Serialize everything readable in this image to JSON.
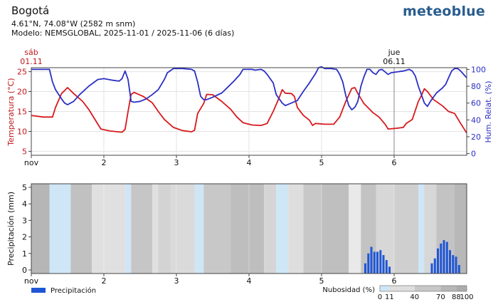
{
  "header": {
    "location": "Bogotá",
    "coordinates": "4.61°N, 74.08°W (2582 m snm)",
    "model": "Modelo: NEMSGLOBAL, 2025-11-01 / 2025-11-06 (6 días)",
    "logo": "meteoblue"
  },
  "colors": {
    "temperature": "#d7191c",
    "humidity": "#2b2fc4",
    "precipitation": "#1f56d6",
    "sky_blue": "#cfe6f6"
  },
  "chart_data": [
    {
      "type": "line",
      "ylabel_left": "Temperatura (°C)",
      "ylabel_right": "Hum. Relat. (%)",
      "ylim_left": [
        4,
        26
      ],
      "ylim_right": [
        -2,
        102
      ],
      "yticks_left": [
        5,
        10,
        15,
        20,
        25
      ],
      "yticks_right": [
        0,
        20,
        40,
        60,
        80,
        100
      ],
      "xlim_hours": [
        0,
        144
      ],
      "xticks": [
        {
          "h": 0,
          "label": "nov"
        },
        {
          "h": 24,
          "label": "2"
        },
        {
          "h": 48,
          "label": "3"
        },
        {
          "h": 72,
          "label": "4"
        },
        {
          "h": 96,
          "label": "5"
        },
        {
          "h": 120,
          "label": "6"
        }
      ],
      "day_markers": [
        {
          "h": 0,
          "day": "sáb",
          "date": "01.11"
        },
        {
          "h": 120,
          "day": "jue",
          "date": "06.11"
        }
      ],
      "grid": true,
      "series": [
        {
          "name": "Temperatura (°C)",
          "axis": "left",
          "points": [
            [
              0,
              14
            ],
            [
              4,
              13.6
            ],
            [
              7,
              13.6
            ],
            [
              8,
              16
            ],
            [
              10,
              19.5
            ],
            [
              12,
              21
            ],
            [
              14,
              19.5
            ],
            [
              17,
              17.5
            ],
            [
              19,
              15.5
            ],
            [
              23,
              10.6
            ],
            [
              26,
              10.1
            ],
            [
              30,
              9.8
            ],
            [
              31,
              10.5
            ],
            [
              32,
              15
            ],
            [
              33,
              19.3
            ],
            [
              34,
              19.8
            ],
            [
              37,
              18.8
            ],
            [
              40,
              17.2
            ],
            [
              42,
              15
            ],
            [
              44,
              13
            ],
            [
              47,
              11
            ],
            [
              50,
              10.2
            ],
            [
              53,
              9.9
            ],
            [
              54,
              10.3
            ],
            [
              55,
              14.5
            ],
            [
              57,
              17
            ],
            [
              58,
              19.3
            ],
            [
              60,
              19.2
            ],
            [
              63,
              17.5
            ],
            [
              66,
              15.5
            ],
            [
              68,
              13.6
            ],
            [
              70,
              12.2
            ],
            [
              73,
              11.6
            ],
            [
              76,
              11.5
            ],
            [
              78,
              12
            ],
            [
              80,
              15
            ],
            [
              82,
              18.5
            ],
            [
              83,
              20.5
            ],
            [
              84,
              19.6
            ],
            [
              86,
              19.5
            ],
            [
              87,
              18.8
            ],
            [
              88,
              16
            ],
            [
              90,
              14
            ],
            [
              92,
              12.8
            ],
            [
              93,
              11.5
            ],
            [
              94,
              12
            ],
            [
              97,
              11.8
            ],
            [
              100,
              11.8
            ],
            [
              102,
              13.6
            ],
            [
              104,
              17.5
            ],
            [
              106,
              20.8
            ],
            [
              107,
              21
            ],
            [
              108,
              19.5
            ],
            [
              110,
              17
            ],
            [
              113,
              14.7
            ],
            [
              115,
              13.6
            ],
            [
              117,
              11.8
            ],
            [
              118,
              10.6
            ],
            [
              121,
              10.8
            ],
            [
              123,
              11
            ],
            [
              124,
              12
            ],
            [
              126,
              13
            ],
            [
              128,
              17.5
            ],
            [
              129,
              19
            ],
            [
              130,
              20.7
            ],
            [
              131,
              20
            ],
            [
              133,
              18
            ],
            [
              136,
              16.4
            ],
            [
              138,
              15
            ],
            [
              140,
              14.5
            ],
            [
              142,
              12
            ],
            [
              144,
              9.6
            ]
          ]
        },
        {
          "name": "Hum. Relat. (%)",
          "axis": "right",
          "points": [
            [
              0,
              100
            ],
            [
              6,
              100
            ],
            [
              7,
              85
            ],
            [
              8,
              76
            ],
            [
              10,
              65
            ],
            [
              11,
              60
            ],
            [
              12,
              58
            ],
            [
              14,
              62
            ],
            [
              16,
              70
            ],
            [
              19,
              80
            ],
            [
              22,
              88
            ],
            [
              24,
              89
            ],
            [
              27,
              87
            ],
            [
              29,
              86
            ],
            [
              30,
              89
            ],
            [
              31,
              98
            ],
            [
              32,
              88
            ],
            [
              33,
              62
            ],
            [
              34,
              61
            ],
            [
              36,
              62
            ],
            [
              38,
              65
            ],
            [
              40,
              70
            ],
            [
              42,
              76
            ],
            [
              44,
              88
            ],
            [
              45,
              96
            ],
            [
              47,
              101
            ],
            [
              50,
              101
            ],
            [
              53,
              100
            ],
            [
              54,
              98
            ],
            [
              55,
              85
            ],
            [
              56,
              68
            ],
            [
              57,
              64
            ],
            [
              58,
              64
            ],
            [
              60,
              67
            ],
            [
              63,
              72
            ],
            [
              65,
              79
            ],
            [
              67,
              86
            ],
            [
              69,
              94
            ],
            [
              70,
              100
            ],
            [
              73,
              100
            ],
            [
              74,
              99
            ],
            [
              76,
              100
            ],
            [
              77,
              98
            ],
            [
              78,
              94
            ],
            [
              80,
              84
            ],
            [
              81,
              70
            ],
            [
              82,
              65
            ],
            [
              83,
              60
            ],
            [
              84,
              57
            ],
            [
              86,
              60
            ],
            [
              88,
              63
            ],
            [
              90,
              74
            ],
            [
              92,
              84
            ],
            [
              94,
              95
            ],
            [
              95,
              102
            ],
            [
              96,
              103
            ],
            [
              97,
              101
            ],
            [
              99,
              101
            ],
            [
              101,
              100
            ],
            [
              102,
              94
            ],
            [
              103,
              85
            ],
            [
              104,
              69
            ],
            [
              105,
              57
            ],
            [
              106,
              52
            ],
            [
              107,
              55
            ],
            [
              108,
              62
            ],
            [
              109,
              80
            ],
            [
              110,
              91
            ],
            [
              111,
              100
            ],
            [
              112,
              100
            ],
            [
              113,
              96
            ],
            [
              114,
              94
            ],
            [
              115,
              99
            ],
            [
              116,
              100
            ],
            [
              117,
              97
            ],
            [
              118,
              94
            ],
            [
              119,
              96
            ],
            [
              121,
              97
            ],
            [
              123,
              98
            ],
            [
              125,
              100
            ],
            [
              126,
              98
            ],
            [
              127,
              92
            ],
            [
              128,
              80
            ],
            [
              129,
              70
            ],
            [
              130,
              60
            ],
            [
              131,
              56
            ],
            [
              132,
              62
            ],
            [
              134,
              72
            ],
            [
              136,
              78
            ],
            [
              137,
              82
            ],
            [
              138,
              90
            ],
            [
              139,
              98
            ],
            [
              140,
              101
            ],
            [
              141,
              101
            ],
            [
              142,
              98
            ],
            [
              143,
              94
            ],
            [
              144,
              90
            ]
          ]
        }
      ]
    },
    {
      "type": "bar",
      "ylabel": "Precipitación (mm)",
      "ylim": [
        0,
        5
      ],
      "yticks": [
        0,
        1,
        2,
        3,
        4,
        5
      ],
      "xlim_hours": [
        0,
        144
      ],
      "legend_label": "Precipitación",
      "cloud_label": "Nubosidad (%)",
      "cloud_scale": [
        0,
        11,
        40,
        70,
        88,
        100
      ],
      "cloud_blocks": [
        [
          0,
          6,
          80
        ],
        [
          6,
          13,
          0
        ],
        [
          13,
          20,
          65
        ],
        [
          20,
          31,
          22
        ],
        [
          31,
          33,
          0
        ],
        [
          33,
          40,
          58
        ],
        [
          40,
          42,
          22
        ],
        [
          42,
          46,
          40
        ],
        [
          46,
          54,
          30
        ],
        [
          54,
          57,
          0
        ],
        [
          57,
          66,
          56
        ],
        [
          66,
          77,
          70
        ],
        [
          77,
          81,
          38
        ],
        [
          81,
          85,
          0
        ],
        [
          85,
          90,
          25
        ],
        [
          90,
          96,
          55
        ],
        [
          96,
          105,
          68
        ],
        [
          105,
          109,
          10
        ],
        [
          109,
          114,
          62
        ],
        [
          114,
          120,
          35
        ],
        [
          120,
          128,
          46
        ],
        [
          128,
          130,
          0
        ],
        [
          130,
          134,
          35
        ],
        [
          134,
          140,
          62
        ],
        [
          140,
          144,
          78
        ]
      ],
      "precipitation": [
        [
          110,
          0.4
        ],
        [
          111,
          1
        ],
        [
          112,
          1.4
        ],
        [
          113,
          1.1
        ],
        [
          114,
          1.1
        ],
        [
          115,
          1.2
        ],
        [
          116,
          0.9
        ],
        [
          117,
          0.6
        ],
        [
          118,
          0.2
        ],
        [
          132,
          0.4
        ],
        [
          133,
          0.7
        ],
        [
          134,
          1.3
        ],
        [
          135,
          1.6
        ],
        [
          136,
          1.8
        ],
        [
          137,
          1.7
        ],
        [
          138,
          1.2
        ],
        [
          139,
          0.9
        ],
        [
          140,
          0.8
        ],
        [
          141,
          0.3
        ]
      ]
    }
  ]
}
